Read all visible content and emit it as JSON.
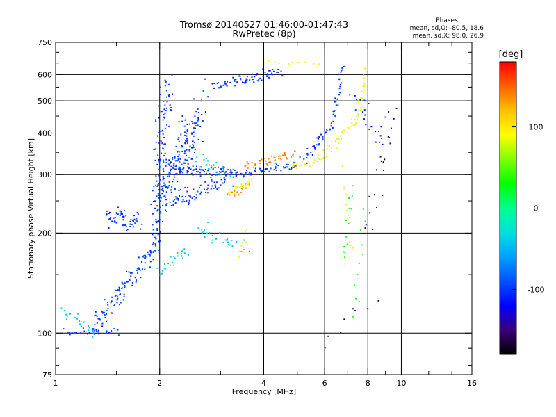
{
  "chart_data": {
    "type": "scatter",
    "title": "Tromsø 20140527 01:46:00-01:47:43",
    "subtitle": "RwPretec (8p)",
    "xlabel": "Frequency [MHz]",
    "ylabel": "Stationary phase Virtual Height [km]",
    "x_scale": "log",
    "y_scale": "log",
    "xlim": [
      1,
      16
    ],
    "ylim": [
      75,
      750
    ],
    "x_ticks": [
      1,
      2,
      4,
      6,
      8,
      10,
      16
    ],
    "x_tick_labels": [
      "1",
      "2",
      "4",
      "6",
      "8",
      "10",
      "16"
    ],
    "x_minor_ticks": [
      1.5,
      3,
      5,
      7,
      9,
      12,
      14
    ],
    "y_ticks": [
      75,
      100,
      200,
      300,
      400,
      500,
      600,
      750
    ],
    "y_tick_labels": [
      "75",
      "100",
      "200",
      "300",
      "400",
      "500",
      "600",
      "750"
    ],
    "y_minor_ticks": [
      80,
      90,
      150,
      250,
      350,
      450,
      550,
      650,
      700
    ],
    "x_grid": [
      2,
      4,
      6,
      8,
      10
    ],
    "y_grid": [
      100,
      200,
      300,
      400,
      500,
      600
    ],
    "stats": {
      "heading": "Phases",
      "line1": "mean, sd,O:  -80.5, 18.6",
      "line2": "mean, sd,X:  98.0, 26.9"
    },
    "colorbar": {
      "label": "[deg]",
      "range": [
        -180,
        180
      ],
      "ticks": [
        100,
        0,
        -100
      ],
      "tick_labels": [
        "100",
        "0",
        "-100"
      ],
      "colors": [
        "#000000",
        "#3a0078",
        "#0000ff",
        "#0050ff",
        "#00a0ff",
        "#00e0e0",
        "#00ff90",
        "#00ff00",
        "#80ff00",
        "#ffff00",
        "#ffc000",
        "#ff6000",
        "#ff0000"
      ]
    },
    "series": [
      {
        "color_deg": -100,
        "segments": [
          {
            "x": [
              1.05,
              1.5
            ],
            "y": [
              100,
              102
            ],
            "n": 30,
            "sx": 0.04,
            "sy": 0.03
          },
          {
            "x": [
              1.3,
              1.95
            ],
            "y": [
              105,
              180
            ],
            "n": 110,
            "sx": 0.03,
            "sy": 0.05
          },
          {
            "x": [
              1.95,
              2.1
            ],
            "y": [
              180,
              560
            ],
            "n": 130,
            "sx": 0.04,
            "sy": 0.06
          },
          {
            "x": [
              2.0,
              2.45
            ],
            "y": [
              250,
              420
            ],
            "n": 110,
            "sx": 0.05,
            "sy": 0.1
          },
          {
            "x": [
              2.3,
              2.7
            ],
            "y": [
              280,
              520
            ],
            "n": 60,
            "sx": 0.04,
            "sy": 0.1
          },
          {
            "x": [
              2.1,
              3.3
            ],
            "y": [
              320,
              300
            ],
            "n": 90,
            "sx": 0.04,
            "sy": 0.04
          },
          {
            "x": [
              2.1,
              3.1
            ],
            "y": [
              240,
              290
            ],
            "n": 70,
            "sx": 0.04,
            "sy": 0.04
          },
          {
            "x": [
              3.3,
              5.0
            ],
            "y": [
              300,
              320
            ],
            "n": 60,
            "sx": 0.03,
            "sy": 0.02
          },
          {
            "x": [
              1.4,
              1.75
            ],
            "y": [
              225,
              215
            ],
            "n": 60,
            "sx": 0.025,
            "sy": 0.06
          },
          {
            "x": [
              2.9,
              4.5
            ],
            "y": [
              560,
              610
            ],
            "n": 70,
            "sx": 0.03,
            "sy": 0.03
          },
          {
            "x": [
              5.2,
              6.3
            ],
            "y": [
              330,
              420
            ],
            "n": 35,
            "sx": 0.02,
            "sy": 0.03
          },
          {
            "x": [
              6.3,
              6.8
            ],
            "y": [
              430,
              640
            ],
            "n": 30,
            "sx": 0.015,
            "sy": 0.03
          },
          {
            "x": [
              7.2,
              9.2
            ],
            "y": [
              480,
              380
            ],
            "n": 25,
            "sx": 0.04,
            "sy": 0.1
          }
        ]
      },
      {
        "color_deg": -40,
        "segments": [
          {
            "x": [
              1.05,
              1.3
            ],
            "y": [
              115,
              100
            ],
            "n": 20,
            "sx": 0.03,
            "sy": 0.04
          },
          {
            "x": [
              2.0,
              2.4
            ],
            "y": [
              150,
              175
            ],
            "n": 25,
            "sx": 0.03,
            "sy": 0.04
          },
          {
            "x": [
              2.6,
              3.5
            ],
            "y": [
              210,
              180
            ],
            "n": 30,
            "sx": 0.04,
            "sy": 0.05
          },
          {
            "x": [
              2.5,
              3.2
            ],
            "y": [
              340,
              300
            ],
            "n": 25,
            "sx": 0.04,
            "sy": 0.04
          }
        ]
      },
      {
        "color_deg": 90,
        "segments": [
          {
            "x": [
              3.2,
              3.7
            ],
            "y": [
              265,
              285
            ],
            "n": 25,
            "sx": 0.02,
            "sy": 0.02
          },
          {
            "x": [
              4.8,
              5.8
            ],
            "y": [
              320,
              330
            ],
            "n": 25,
            "sx": 0.02,
            "sy": 0.02
          },
          {
            "x": [
              5.8,
              7.5
            ],
            "y": [
              330,
              450
            ],
            "n": 35,
            "sx": 0.02,
            "sy": 0.03
          },
          {
            "x": [
              7.4,
              7.9
            ],
            "y": [
              420,
              640
            ],
            "n": 30,
            "sx": 0.015,
            "sy": 0.04
          },
          {
            "x": [
              4.0,
              5.8
            ],
            "y": [
              650,
              650
            ],
            "n": 10,
            "sx": 0.02,
            "sy": 0.015
          },
          {
            "x": [
              3.4,
              3.6
            ],
            "y": [
              170,
              200
            ],
            "n": 12,
            "sx": 0.02,
            "sy": 0.04
          },
          {
            "x": [
              6.8,
              7.2
            ],
            "y": [
              300,
              180
            ],
            "n": 12,
            "sx": 0.01,
            "sy": 0.08
          }
        ]
      },
      {
        "color_deg": 140,
        "segments": [
          {
            "x": [
              3.6,
              4.9
            ],
            "y": [
              320,
              345
            ],
            "n": 45,
            "sx": 0.025,
            "sy": 0.025
          },
          {
            "x": [
              3.2,
              3.6
            ],
            "y": [
              260,
              280
            ],
            "n": 15,
            "sx": 0.02,
            "sy": 0.03
          }
        ]
      },
      {
        "color_deg": 30,
        "segments": [
          {
            "x": [
              6.8,
              7.2
            ],
            "y": [
              160,
              280
            ],
            "n": 14,
            "sx": 0.01,
            "sy": 0.08
          },
          {
            "x": [
              7.3,
              7.9
            ],
            "y": [
              110,
              260
            ],
            "n": 12,
            "sx": 0.02,
            "sy": 0.1
          }
        ]
      },
      {
        "color_deg": -160,
        "segments": [
          {
            "x": [
              8.0,
              9.5
            ],
            "y": [
              200,
              470
            ],
            "n": 20,
            "sx": 0.03,
            "sy": 0.1
          },
          {
            "x": [
              6.0,
              8.3
            ],
            "y": [
              95,
              130
            ],
            "n": 8,
            "sx": 0.05,
            "sy": 0.05
          }
        ]
      }
    ]
  }
}
